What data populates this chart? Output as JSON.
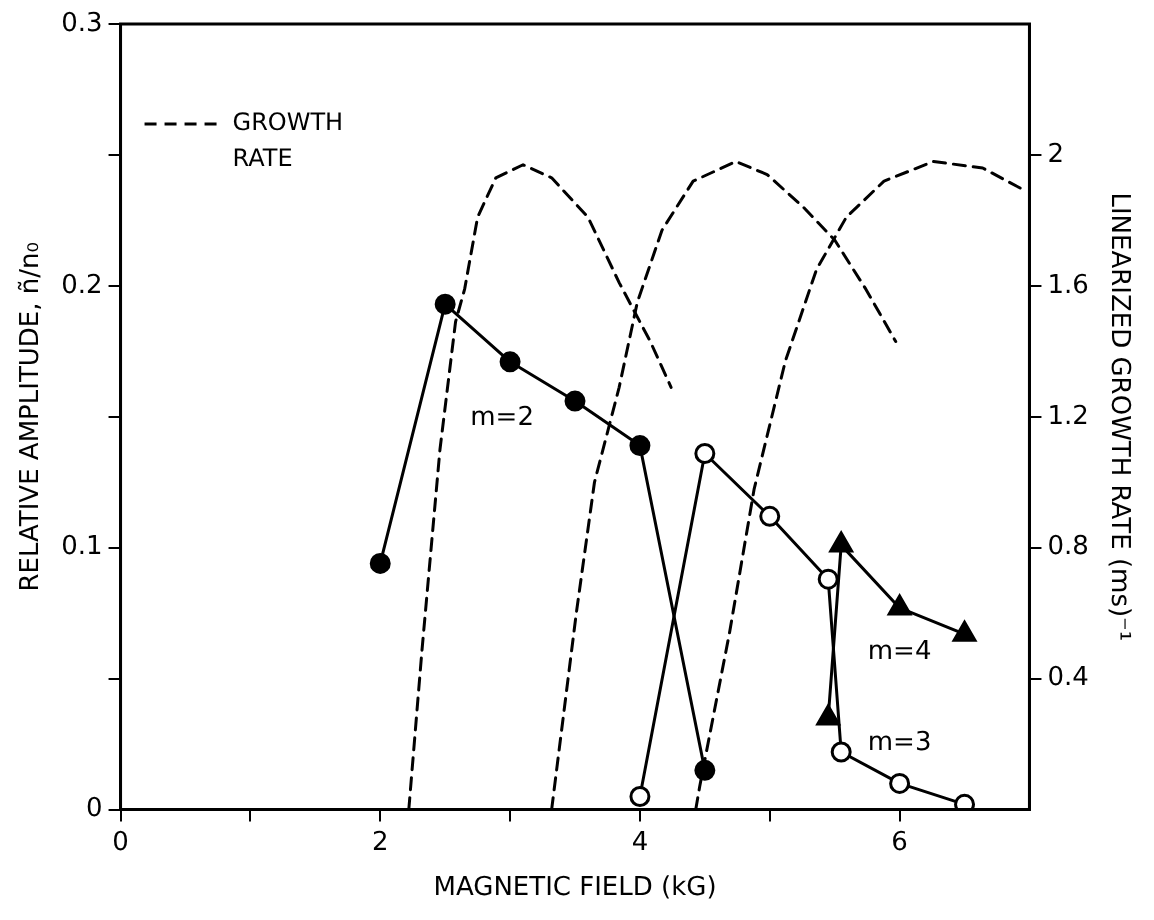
{
  "chart_data": {
    "type": "line",
    "xlabel": "MAGNETIC FIELD (kG)",
    "ylabel": "RELATIVE AMPLITUDE, ñ/n₀",
    "y2label": "LINEARIZED GROWTH RATE (ms)⁻¹",
    "xlim": [
      0,
      7
    ],
    "xticks": [
      0,
      {
        "value": 1,
        "label": null
      },
      2,
      {
        "value": 3,
        "label": null
      },
      4,
      {
        "value": 5,
        "label": null
      },
      6
    ],
    "ylim": [
      0,
      0.3
    ],
    "yticks": [
      0,
      {
        "value": 0.05,
        "label": null
      },
      0.1,
      {
        "value": 0.15,
        "label": null
      },
      0.2,
      {
        "value": 0.25,
        "label": null
      },
      0.3
    ],
    "y2lim": [
      0,
      2.4
    ],
    "y2ticks": [
      0.4,
      0.8,
      1.2,
      1.6,
      2.0
    ],
    "grid": false,
    "legend": "top left",
    "series": [
      {
        "name": "m=2",
        "color": "#000000",
        "marker": "circle",
        "line_style": "solid",
        "x": [
          2,
          2.5,
          3,
          3.5,
          4,
          4.5
        ],
        "values": [
          0.094,
          0.193,
          0.171,
          0.156,
          0.139,
          0.015
        ]
      },
      {
        "name": "m=3",
        "color": "#000000",
        "marker": "open circle",
        "line_style": "solid",
        "x": [
          4,
          4.5,
          5,
          5.45,
          5.55,
          6,
          6.5
        ],
        "values": [
          0.005,
          0.136,
          0.112,
          0.088,
          0.022,
          0.01,
          0.002
        ]
      },
      {
        "name": "m=4",
        "color": "#000000",
        "marker": "triangle",
        "line_style": "solid",
        "x": [
          5.45,
          5.55,
          6,
          6.5
        ],
        "values": [
          0.035,
          0.101,
          0.077,
          0.067
        ]
      },
      {
        "name": "GROWTH RATE",
        "axis": "y2",
        "color": "#000000",
        "marker": "none",
        "line_style": "dashed",
        "x": [
          2.22,
          2.32,
          2.46,
          2.58,
          2.65,
          2.75,
          2.89,
          3.1,
          3.32,
          3.6,
          3.84,
          4.08,
          4.24
        ],
        "values": [
          0,
          0.48,
          1.1,
          1.49,
          1.59,
          1.81,
          1.93,
          1.97,
          1.93,
          1.81,
          1.61,
          1.43,
          1.29
        ]
      },
      {
        "axis": "y2",
        "color": "#000000",
        "marker": "none",
        "line_style": "dashed",
        "x": [
          3.32,
          3.51,
          3.65,
          3.84,
          3.98,
          4.17,
          4.41,
          4.74,
          4.98,
          5.26,
          5.5,
          5.74,
          5.97
        ],
        "values": [
          0,
          0.6,
          1.0,
          1.29,
          1.55,
          1.77,
          1.92,
          1.98,
          1.94,
          1.84,
          1.74,
          1.59,
          1.43
        ]
      },
      {
        "axis": "y2",
        "color": "#000000",
        "marker": "none",
        "line_style": "dashed",
        "x": [
          4.43,
          4.46,
          4.69,
          4.88,
          5.12,
          5.36,
          5.59,
          5.88,
          6.26,
          6.64,
          6.97
        ],
        "values": [
          0,
          0.07,
          0.54,
          0.98,
          1.37,
          1.65,
          1.81,
          1.92,
          1.98,
          1.96,
          1.89
        ]
      }
    ]
  }
}
